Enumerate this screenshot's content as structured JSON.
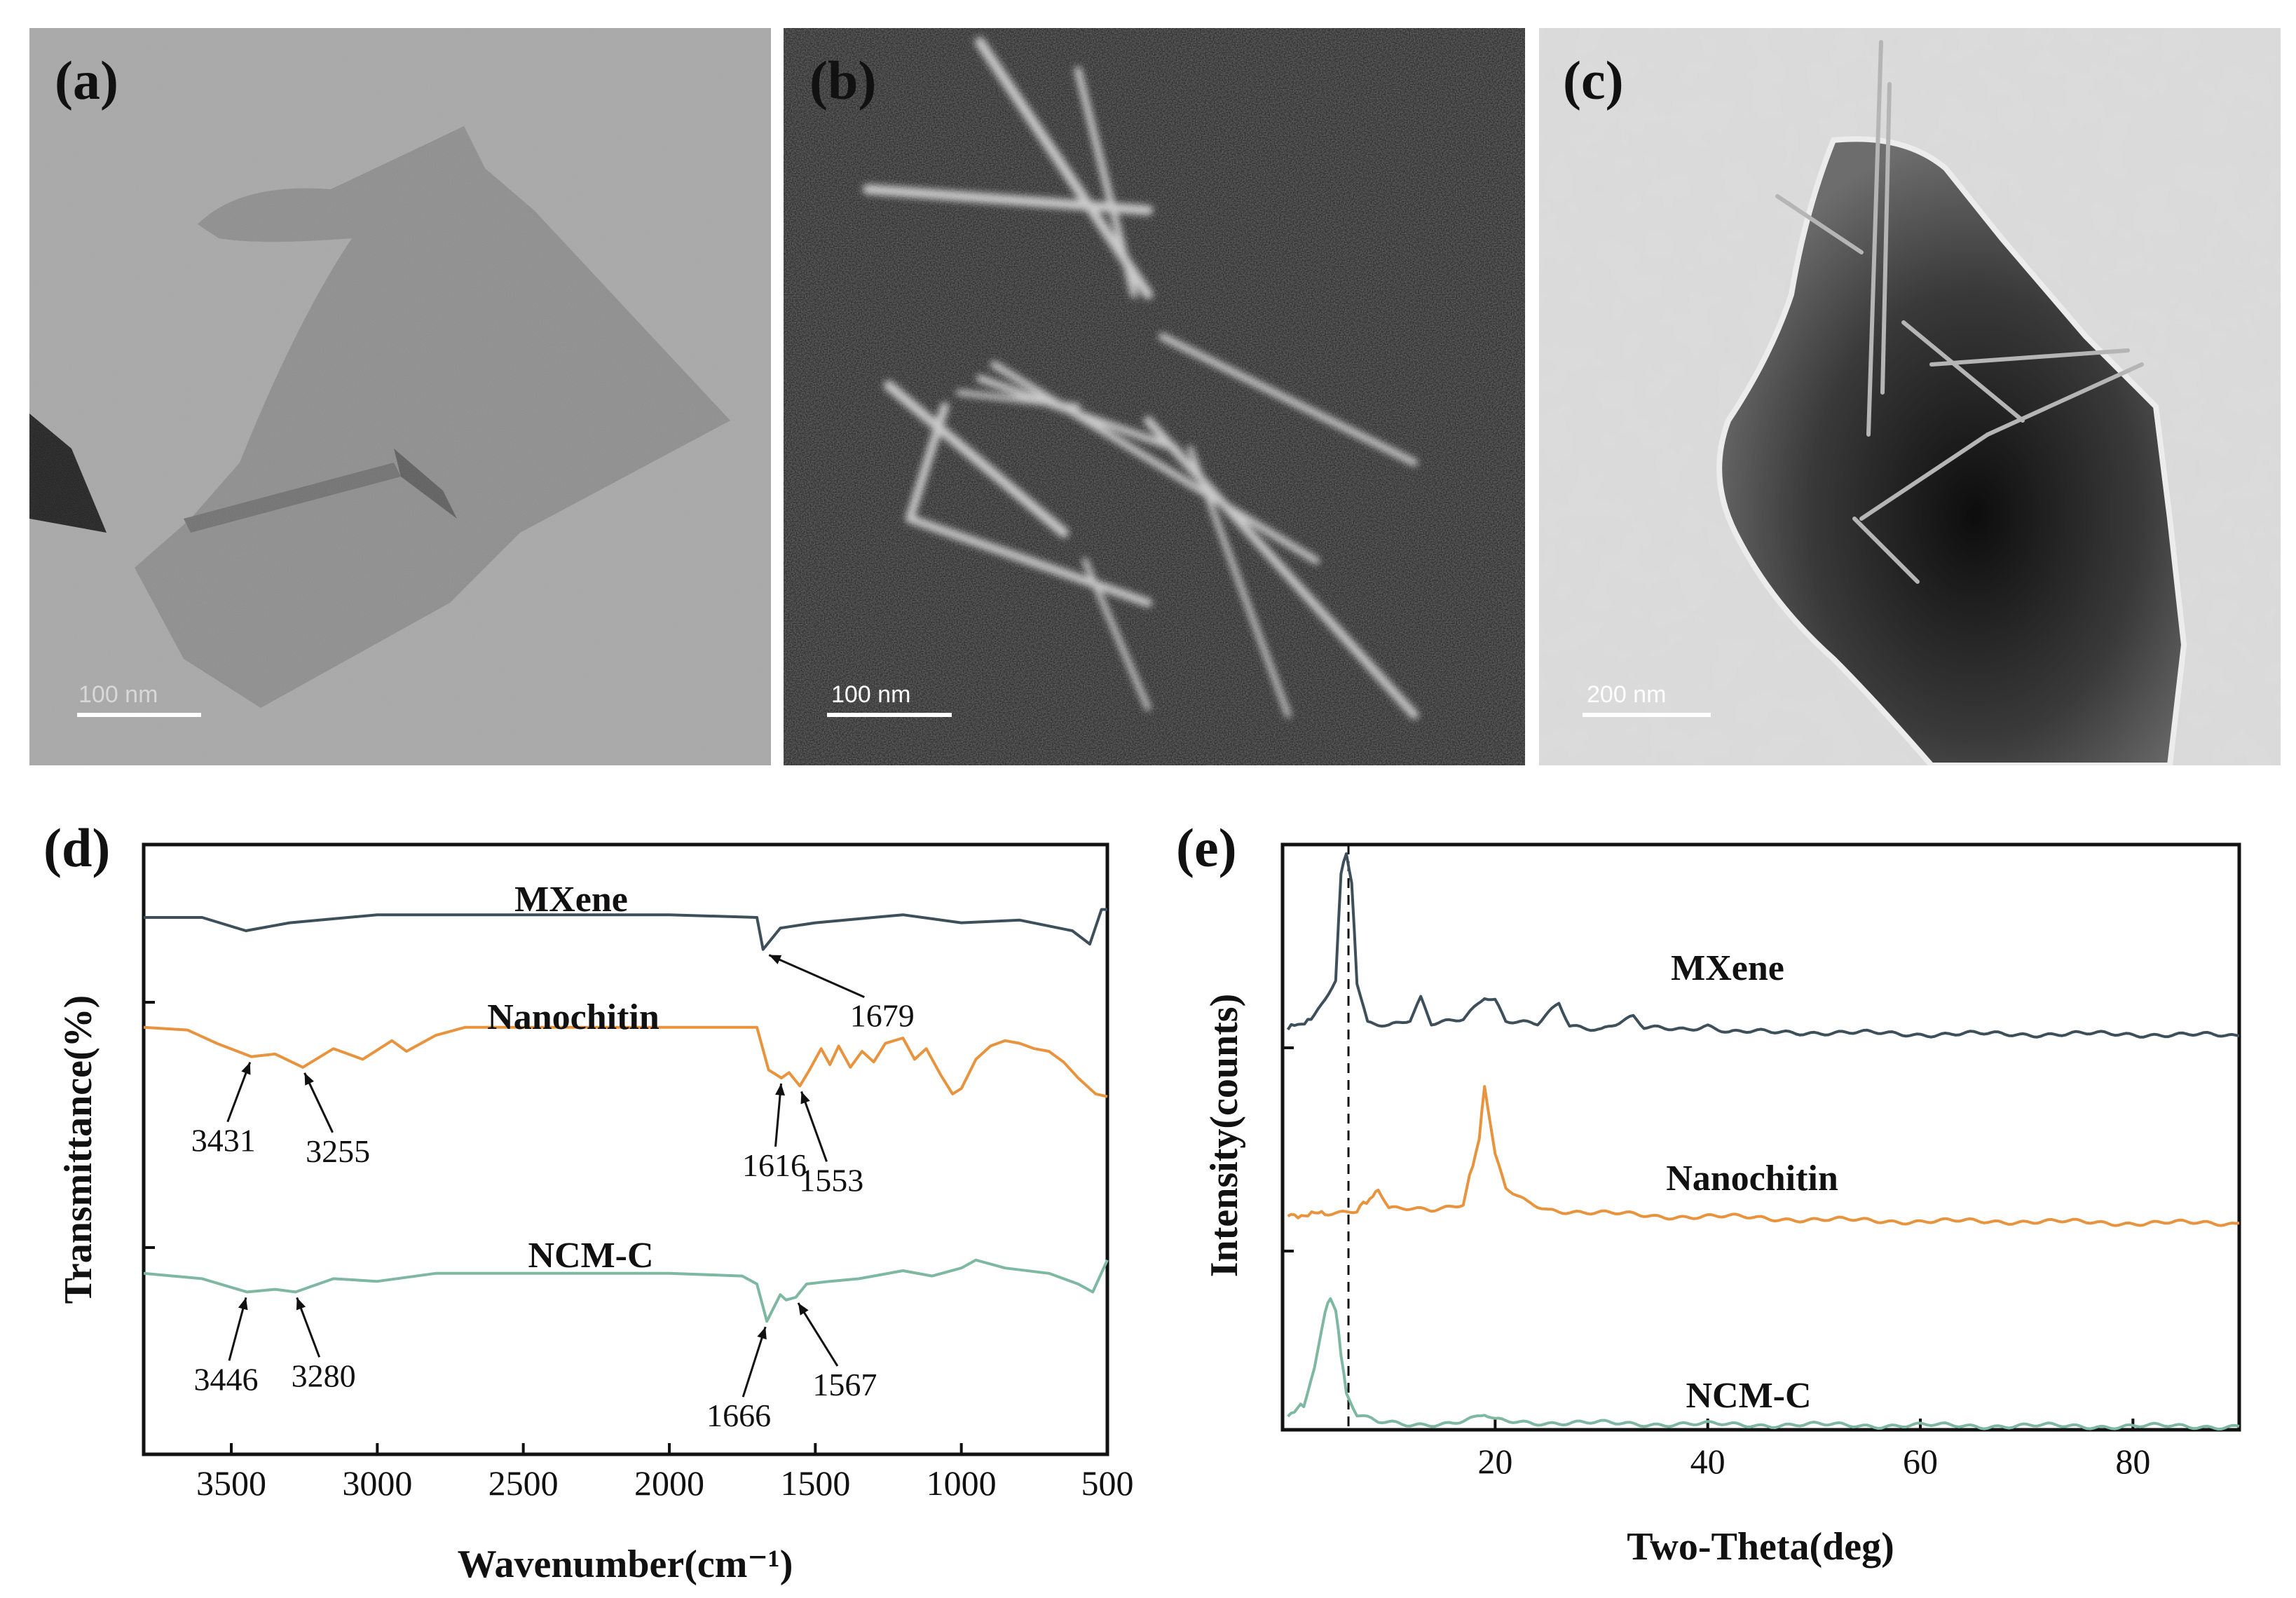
{
  "panels": {
    "a": {
      "label": "(a)",
      "scale_bar": "100 nm"
    },
    "b": {
      "label": "(b)",
      "scale_bar": "100 nm"
    },
    "c": {
      "label": "(c)",
      "scale_bar": "200 nm"
    },
    "d": {
      "label": "(d)"
    },
    "e": {
      "label": "(e)"
    }
  },
  "chart_data": [
    {
      "id": "d",
      "type": "line",
      "xlabel": "Wavenumber(cm⁻¹)",
      "ylabel": "Transmittance(%)",
      "xlim": [
        3800,
        500
      ],
      "x_ticks": [
        3500,
        3000,
        2500,
        2000,
        1500,
        1000,
        500
      ],
      "series": [
        {
          "name": "MXene",
          "color": "#3d4f5a",
          "points": [
            [
              3800,
              0.5
            ],
            [
              3600,
              0.5
            ],
            [
              3450,
              0.0
            ],
            [
              3300,
              0.3
            ],
            [
              3000,
              0.6
            ],
            [
              2500,
              0.6
            ],
            [
              2000,
              0.6
            ],
            [
              1700,
              0.5
            ],
            [
              1679,
              -0.7
            ],
            [
              1620,
              0.1
            ],
            [
              1500,
              0.3
            ],
            [
              1200,
              0.6
            ],
            [
              1000,
              0.3
            ],
            [
              800,
              0.4
            ],
            [
              620,
              0.0
            ],
            [
              560,
              -0.5
            ],
            [
              520,
              0.8
            ],
            [
              500,
              0.8
            ]
          ],
          "annotations": [
            {
              "x": 1679,
              "text": "1679"
            }
          ]
        },
        {
          "name": "Nanochitin",
          "color": "#e8933d",
          "points": [
            [
              3800,
              0.9
            ],
            [
              3650,
              0.8
            ],
            [
              3550,
              0.3
            ],
            [
              3431,
              -0.2
            ],
            [
              3350,
              -0.1
            ],
            [
              3255,
              -0.6
            ],
            [
              3150,
              0.1
            ],
            [
              3050,
              -0.3
            ],
            [
              2950,
              0.4
            ],
            [
              2900,
              0.0
            ],
            [
              2800,
              0.6
            ],
            [
              2700,
              0.9
            ],
            [
              2000,
              0.9
            ],
            [
              1700,
              0.9
            ],
            [
              1660,
              -0.7
            ],
            [
              1616,
              -1.0
            ],
            [
              1590,
              -0.8
            ],
            [
              1553,
              -1.3
            ],
            [
              1520,
              -0.7
            ],
            [
              1480,
              0.1
            ],
            [
              1450,
              -0.5
            ],
            [
              1420,
              0.2
            ],
            [
              1380,
              -0.6
            ],
            [
              1340,
              0.0
            ],
            [
              1300,
              -0.4
            ],
            [
              1260,
              0.3
            ],
            [
              1200,
              0.5
            ],
            [
              1160,
              -0.3
            ],
            [
              1120,
              0.1
            ],
            [
              1070,
              -0.9
            ],
            [
              1030,
              -1.6
            ],
            [
              1000,
              -1.4
            ],
            [
              950,
              -0.3
            ],
            [
              900,
              0.2
            ],
            [
              850,
              0.4
            ],
            [
              800,
              0.3
            ],
            [
              750,
              0.1
            ],
            [
              700,
              0.0
            ],
            [
              650,
              -0.4
            ],
            [
              600,
              -1.0
            ],
            [
              540,
              -1.6
            ],
            [
              500,
              -1.7
            ]
          ],
          "annotations": [
            {
              "x": 3431,
              "text": "3431"
            },
            {
              "x": 3255,
              "text": "3255"
            },
            {
              "x": 1616,
              "text": "1616"
            },
            {
              "x": 1553,
              "text": "1553"
            }
          ]
        },
        {
          "name": "NCM-C",
          "color": "#7fb8a0",
          "points": [
            [
              3800,
              0.4
            ],
            [
              3600,
              0.2
            ],
            [
              3446,
              -0.3
            ],
            [
              3350,
              -0.2
            ],
            [
              3280,
              -0.3
            ],
            [
              3150,
              0.2
            ],
            [
              3000,
              0.1
            ],
            [
              2800,
              0.4
            ],
            [
              2000,
              0.4
            ],
            [
              1750,
              0.3
            ],
            [
              1700,
              0.0
            ],
            [
              1666,
              -1.4
            ],
            [
              1620,
              -0.4
            ],
            [
              1600,
              -0.6
            ],
            [
              1567,
              -0.5
            ],
            [
              1530,
              0.0
            ],
            [
              1450,
              0.1
            ],
            [
              1350,
              0.2
            ],
            [
              1200,
              0.5
            ],
            [
              1100,
              0.3
            ],
            [
              1000,
              0.6
            ],
            [
              950,
              0.9
            ],
            [
              850,
              0.6
            ],
            [
              700,
              0.4
            ],
            [
              600,
              0.0
            ],
            [
              550,
              -0.3
            ],
            [
              500,
              0.9
            ]
          ],
          "annotations": [
            {
              "x": 3446,
              "text": "3446"
            },
            {
              "x": 3280,
              "text": "3280"
            },
            {
              "x": 1666,
              "text": "1666"
            },
            {
              "x": 1567,
              "text": "1567"
            }
          ]
        }
      ]
    },
    {
      "id": "e",
      "type": "line",
      "xlabel": "Two-Theta(deg)",
      "ylabel": "Intensity(counts)",
      "xlim": [
        0,
        90
      ],
      "x_ticks": [
        20,
        40,
        60,
        80
      ],
      "dashed_line_x": 6.2,
      "series": [
        {
          "name": "MXene",
          "color": "#3d4f5a",
          "points": [
            [
              0.5,
              0.2
            ],
            [
              3,
              0.5
            ],
            [
              5,
              1.5
            ],
            [
              5.5,
              4.5
            ],
            [
              6,
              5.0
            ],
            [
              6.5,
              4.2
            ],
            [
              7,
              1.5
            ],
            [
              8,
              0.4
            ],
            [
              10,
              0.3
            ],
            [
              12,
              0.4
            ],
            [
              13,
              1.0
            ],
            [
              14,
              0.3
            ],
            [
              17,
              0.5
            ],
            [
              19,
              1.1
            ],
            [
              20,
              1.0
            ],
            [
              21,
              0.4
            ],
            [
              24,
              0.3
            ],
            [
              26,
              0.9
            ],
            [
              27,
              0.3
            ],
            [
              30,
              0.2
            ],
            [
              33,
              0.5
            ],
            [
              34,
              0.2
            ],
            [
              38,
              0.2
            ],
            [
              40,
              0.3
            ],
            [
              42,
              0.1
            ],
            [
              50,
              0.1
            ],
            [
              60,
              0.05
            ],
            [
              70,
              0.05
            ],
            [
              80,
              0.05
            ],
            [
              90,
              0.0
            ]
          ]
        },
        {
          "name": "Nanochitin",
          "color": "#e8933d",
          "points": [
            [
              0.5,
              0.2
            ],
            [
              4,
              0.3
            ],
            [
              7,
              0.4
            ],
            [
              8.5,
              0.8
            ],
            [
              9,
              1.0
            ],
            [
              10,
              0.4
            ],
            [
              14,
              0.4
            ],
            [
              17,
              0.6
            ],
            [
              18.5,
              2.5
            ],
            [
              19,
              4.1
            ],
            [
              20,
              2.0
            ],
            [
              21,
              1.0
            ],
            [
              23,
              0.6
            ],
            [
              25,
              0.4
            ],
            [
              30,
              0.3
            ],
            [
              35,
              0.2
            ],
            [
              40,
              0.2
            ],
            [
              50,
              0.1
            ],
            [
              60,
              0.05
            ],
            [
              70,
              0.05
            ],
            [
              80,
              0.0
            ],
            [
              90,
              0.0
            ]
          ]
        },
        {
          "name": "NCM-C",
          "color": "#7fb8a0",
          "points": [
            [
              0.5,
              0.3
            ],
            [
              2,
              0.6
            ],
            [
              3,
              1.6
            ],
            [
              4,
              3.2
            ],
            [
              4.5,
              3.5
            ],
            [
              5,
              3.2
            ],
            [
              5.5,
              2.0
            ],
            [
              6,
              0.9
            ],
            [
              7,
              0.3
            ],
            [
              9,
              0.1
            ],
            [
              12,
              0.05
            ],
            [
              16,
              0.1
            ],
            [
              18,
              0.2
            ],
            [
              19,
              0.3
            ],
            [
              20,
              0.15
            ],
            [
              25,
              0.1
            ],
            [
              40,
              0.05
            ],
            [
              60,
              0.02
            ],
            [
              80,
              0.0
            ],
            [
              90,
              0.0
            ]
          ]
        }
      ]
    }
  ]
}
